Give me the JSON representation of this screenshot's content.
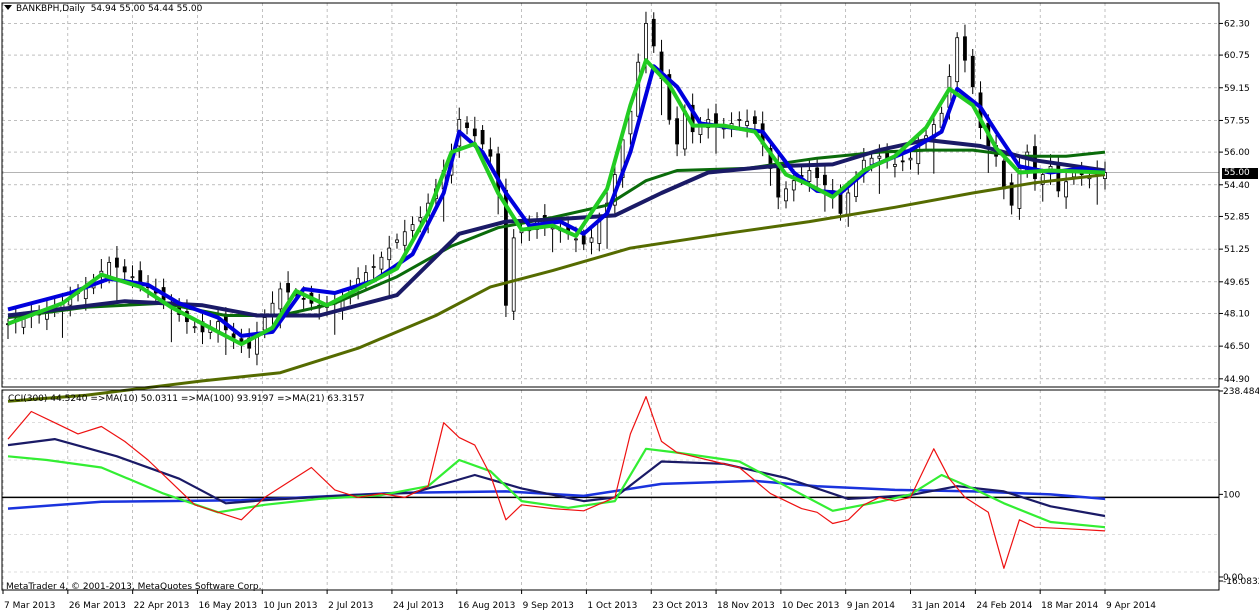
{
  "chart_data": {
    "type": "candlestick",
    "symbol_header": "BANKBPH,Daily",
    "ohlc_header": "54.94 55.00 54.44 55.00",
    "current_price": "55.00",
    "price_axis": {
      "ticks": [
        "62.30",
        "60.75",
        "59.15",
        "57.55",
        "56.00",
        "54.40",
        "52.85",
        "51.25",
        "49.65",
        "48.10",
        "46.50",
        "44.90"
      ],
      "ylim": [
        44.5,
        63.3
      ]
    },
    "date_axis": {
      "ticks": [
        "7 Mar 2013",
        "26 Mar 2013",
        "22 Apr 2013",
        "16 May 2013",
        "10 Jun 2013",
        "2 Jul 2013",
        "24 Jul 2013",
        "16 Aug 2013",
        "9 Sep 2013",
        "1 Oct 2013",
        "23 Oct 2013",
        "18 Nov 2013",
        "10 Dec 2013",
        "9 Jan 2014",
        "31 Jan 2014",
        "24 Feb 2014",
        "18 Mar 2014",
        "9 Apr 2014"
      ]
    },
    "price_path": [
      [
        0,
        47.6
      ],
      [
        5,
        48.2
      ],
      [
        10,
        49.3
      ],
      [
        13,
        50.6
      ],
      [
        16,
        49.9
      ],
      [
        19,
        49.1
      ],
      [
        21,
        48.4
      ],
      [
        23,
        47.7
      ],
      [
        25,
        47.2
      ],
      [
        27,
        47.7
      ],
      [
        29,
        46.9
      ],
      [
        31,
        46.4
      ],
      [
        33,
        47.9
      ],
      [
        35,
        49.3
      ],
      [
        37,
        49.0
      ],
      [
        39,
        48.6
      ],
      [
        41,
        48.4
      ],
      [
        43,
        48.8
      ],
      [
        45,
        49.8
      ],
      [
        47,
        50.4
      ],
      [
        49,
        51.3
      ],
      [
        51,
        52.1
      ],
      [
        53,
        52.8
      ],
      [
        55,
        54.2
      ],
      [
        57,
        56.0
      ],
      [
        58,
        57.6
      ],
      [
        59,
        57.2
      ],
      [
        61,
        56.4
      ],
      [
        62,
        55.8
      ],
      [
        63,
        54.0
      ],
      [
        64,
        48.5
      ],
      [
        65,
        51.8
      ],
      [
        66,
        52.2
      ],
      [
        68,
        52.6
      ],
      [
        70,
        52.3
      ],
      [
        72,
        52.0
      ],
      [
        74,
        51.5
      ],
      [
        75,
        51.8
      ],
      [
        77,
        53.5
      ],
      [
        78,
        54.9
      ],
      [
        79,
        56.6
      ],
      [
        80,
        58.0
      ],
      [
        81,
        60.4
      ],
      [
        82,
        62.3
      ],
      [
        83,
        61.2
      ],
      [
        84,
        59.6
      ],
      [
        85,
        57.6
      ],
      [
        86,
        56.4
      ],
      [
        87,
        58.0
      ],
      [
        88,
        57.0
      ],
      [
        90,
        57.6
      ],
      [
        92,
        57.2
      ],
      [
        94,
        57.6
      ],
      [
        96,
        57.4
      ],
      [
        97,
        56.4
      ],
      [
        98,
        55.2
      ],
      [
        99,
        53.8
      ],
      [
        101,
        54.6
      ],
      [
        103,
        55.1
      ],
      [
        105,
        54.4
      ],
      [
        106,
        53.8
      ],
      [
        107,
        53.0
      ],
      [
        108,
        54.0
      ],
      [
        110,
        55.6
      ],
      [
        112,
        55.8
      ],
      [
        114,
        55.4
      ],
      [
        116,
        55.7
      ],
      [
        118,
        56.8
      ],
      [
        120,
        57.9
      ],
      [
        121,
        59.7
      ],
      [
        122,
        61.6
      ],
      [
        123,
        60.5
      ],
      [
        124,
        59.2
      ],
      [
        125,
        57.2
      ],
      [
        126,
        56.3
      ],
      [
        127,
        55.8
      ],
      [
        128,
        54.2
      ],
      [
        129,
        53.4
      ],
      [
        130,
        55.2
      ],
      [
        131,
        56.0
      ],
      [
        132,
        54.7
      ],
      [
        133,
        54.9
      ],
      [
        134,
        55.3
      ],
      [
        135,
        54.1
      ],
      [
        137,
        55.0
      ],
      [
        139,
        54.8
      ],
      [
        141,
        55.0
      ]
    ],
    "moving_averages": [
      {
        "color": "#556b00",
        "role": "long",
        "points": [
          [
            0,
            43.8
          ],
          [
            10,
            44.1
          ],
          [
            25,
            44.8
          ],
          [
            35,
            45.2
          ],
          [
            45,
            46.4
          ],
          [
            55,
            48.0
          ],
          [
            62,
            49.4
          ],
          [
            70,
            50.2
          ],
          [
            80,
            51.3
          ],
          [
            92,
            52.0
          ],
          [
            103,
            52.6
          ],
          [
            114,
            53.3
          ],
          [
            124,
            54.0
          ],
          [
            132,
            54.5
          ],
          [
            141,
            54.9
          ]
        ]
      },
      {
        "color": "#0a6b0a",
        "role": "medium",
        "points": [
          [
            0,
            47.9
          ],
          [
            10,
            48.4
          ],
          [
            20,
            48.6
          ],
          [
            28,
            48.0
          ],
          [
            35,
            48.0
          ],
          [
            42,
            48.6
          ],
          [
            50,
            49.9
          ],
          [
            57,
            51.4
          ],
          [
            63,
            52.3
          ],
          [
            70,
            52.8
          ],
          [
            77,
            53.4
          ],
          [
            82,
            54.6
          ],
          [
            86,
            55.1
          ],
          [
            95,
            55.2
          ],
          [
            104,
            55.7
          ],
          [
            112,
            56.0
          ],
          [
            118,
            56.1
          ],
          [
            124,
            56.1
          ],
          [
            130,
            55.8
          ],
          [
            136,
            55.8
          ],
          [
            141,
            56.0
          ]
        ]
      },
      {
        "color": "#1a1a66",
        "role": "slow",
        "points": [
          [
            0,
            48.0
          ],
          [
            15,
            48.7
          ],
          [
            25,
            48.5
          ],
          [
            32,
            48.0
          ],
          [
            40,
            48.0
          ],
          [
            50,
            49.0
          ],
          [
            58,
            52.0
          ],
          [
            64,
            52.6
          ],
          [
            70,
            52.7
          ],
          [
            78,
            52.9
          ],
          [
            84,
            54.0
          ],
          [
            90,
            55.0
          ],
          [
            98,
            55.3
          ],
          [
            106,
            55.4
          ],
          [
            112,
            56.1
          ],
          [
            118,
            56.6
          ],
          [
            125,
            56.3
          ],
          [
            132,
            55.6
          ],
          [
            141,
            55.1
          ]
        ]
      },
      {
        "color": "#0000dd",
        "role": "fast-blue",
        "points": [
          [
            0,
            48.3
          ],
          [
            8,
            49.1
          ],
          [
            13,
            49.8
          ],
          [
            18,
            49.5
          ],
          [
            22,
            48.6
          ],
          [
            27,
            47.9
          ],
          [
            30,
            47.0
          ],
          [
            34,
            47.2
          ],
          [
            38,
            49.3
          ],
          [
            42,
            49.1
          ],
          [
            47,
            49.7
          ],
          [
            52,
            51.0
          ],
          [
            56,
            54.0
          ],
          [
            58,
            57.0
          ],
          [
            61,
            56.0
          ],
          [
            64,
            54.0
          ],
          [
            67,
            52.4
          ],
          [
            71,
            52.6
          ],
          [
            74,
            52.0
          ],
          [
            77,
            53.0
          ],
          [
            80,
            56.0
          ],
          [
            83,
            60.2
          ],
          [
            86,
            59.2
          ],
          [
            89,
            57.4
          ],
          [
            93,
            57.2
          ],
          [
            97,
            57.0
          ],
          [
            101,
            55.0
          ],
          [
            104,
            54.1
          ],
          [
            107,
            54.0
          ],
          [
            111,
            55.3
          ],
          [
            116,
            56.1
          ],
          [
            120,
            57.0
          ],
          [
            122,
            59.1
          ],
          [
            125,
            58.2
          ],
          [
            127,
            57.0
          ],
          [
            130,
            55.3
          ],
          [
            134,
            55.0
          ],
          [
            138,
            55.2
          ],
          [
            141,
            55.0
          ]
        ]
      },
      {
        "color": "#22cc22",
        "role": "fast-green",
        "points": [
          [
            0,
            47.6
          ],
          [
            7,
            48.6
          ],
          [
            12,
            50.0
          ],
          [
            17,
            49.4
          ],
          [
            21,
            48.4
          ],
          [
            26,
            47.4
          ],
          [
            30,
            46.6
          ],
          [
            34,
            47.4
          ],
          [
            37,
            49.2
          ],
          [
            41,
            48.5
          ],
          [
            45,
            49.3
          ],
          [
            50,
            50.3
          ],
          [
            54,
            53.0
          ],
          [
            57,
            56.0
          ],
          [
            60,
            56.4
          ],
          [
            63,
            54.0
          ],
          [
            66,
            52.2
          ],
          [
            70,
            52.4
          ],
          [
            73,
            51.9
          ],
          [
            77,
            54.2
          ],
          [
            80,
            58.3
          ],
          [
            82,
            60.5
          ],
          [
            85,
            59.3
          ],
          [
            88,
            57.3
          ],
          [
            92,
            57.3
          ],
          [
            96,
            57.0
          ],
          [
            100,
            54.9
          ],
          [
            103,
            54.4
          ],
          [
            106,
            53.8
          ],
          [
            110,
            55.1
          ],
          [
            114,
            55.8
          ],
          [
            118,
            57.2
          ],
          [
            121,
            59.1
          ],
          [
            124,
            58.3
          ],
          [
            127,
            56.2
          ],
          [
            130,
            55.0
          ],
          [
            134,
            55.1
          ],
          [
            141,
            55.0
          ]
        ]
      }
    ],
    "cci_indicator": {
      "label": "CCI(300) 44.5240",
      "ma_labels": [
        "=>MA(10) 50.0311",
        "=>MA(100) 93.9197",
        "=>MA(21) 63.3157"
      ],
      "axis_ticks": [
        "238.4848",
        "100",
        "0.00",
        "-16.0832"
      ],
      "ylim": [
        -16.08,
        238.48
      ],
      "reference_level": 100,
      "cci_path": [
        [
          0,
          178
        ],
        [
          3,
          215
        ],
        [
          6,
          200
        ],
        [
          9,
          185
        ],
        [
          12,
          195
        ],
        [
          15,
          175
        ],
        [
          18,
          150
        ],
        [
          21,
          120
        ],
        [
          24,
          90
        ],
        [
          27,
          80
        ],
        [
          30,
          70
        ],
        [
          33,
          100
        ],
        [
          36,
          120
        ],
        [
          39,
          140
        ],
        [
          42,
          110
        ],
        [
          45,
          100
        ],
        [
          48,
          105
        ],
        [
          51,
          100
        ],
        [
          54,
          115
        ],
        [
          56,
          200
        ],
        [
          58,
          180
        ],
        [
          60,
          170
        ],
        [
          62,
          130
        ],
        [
          64,
          70
        ],
        [
          66,
          90
        ],
        [
          70,
          85
        ],
        [
          74,
          82
        ],
        [
          78,
          100
        ],
        [
          80,
          185
        ],
        [
          82,
          235
        ],
        [
          84,
          175
        ],
        [
          86,
          160
        ],
        [
          90,
          150
        ],
        [
          94,
          140
        ],
        [
          98,
          105
        ],
        [
          102,
          85
        ],
        [
          104,
          80
        ],
        [
          106,
          65
        ],
        [
          108,
          70
        ],
        [
          110,
          90
        ],
        [
          112,
          100
        ],
        [
          114,
          95
        ],
        [
          116,
          100
        ],
        [
          119,
          165
        ],
        [
          121,
          125
        ],
        [
          123,
          100
        ],
        [
          126,
          80
        ],
        [
          128,
          5
        ],
        [
          130,
          70
        ],
        [
          132,
          60
        ],
        [
          136,
          58
        ],
        [
          141,
          55
        ]
      ],
      "ma_fast_path": [
        [
          0,
          155
        ],
        [
          5,
          150
        ],
        [
          12,
          140
        ],
        [
          20,
          105
        ],
        [
          27,
          80
        ],
        [
          33,
          90
        ],
        [
          40,
          98
        ],
        [
          48,
          103
        ],
        [
          54,
          115
        ],
        [
          58,
          150
        ],
        [
          62,
          135
        ],
        [
          66,
          95
        ],
        [
          72,
          86
        ],
        [
          78,
          95
        ],
        [
          82,
          165
        ],
        [
          86,
          160
        ],
        [
          94,
          148
        ],
        [
          100,
          115
        ],
        [
          106,
          82
        ],
        [
          112,
          94
        ],
        [
          116,
          104
        ],
        [
          120,
          130
        ],
        [
          124,
          112
        ],
        [
          128,
          92
        ],
        [
          134,
          67
        ],
        [
          141,
          60
        ]
      ],
      "ma_mid_path": [
        [
          0,
          170
        ],
        [
          6,
          178
        ],
        [
          14,
          155
        ],
        [
          22,
          125
        ],
        [
          28,
          92
        ],
        [
          34,
          97
        ],
        [
          44,
          103
        ],
        [
          52,
          106
        ],
        [
          60,
          130
        ],
        [
          66,
          112
        ],
        [
          74,
          95
        ],
        [
          78,
          100
        ],
        [
          84,
          148
        ],
        [
          92,
          145
        ],
        [
          100,
          126
        ],
        [
          108,
          98
        ],
        [
          116,
          103
        ],
        [
          122,
          115
        ],
        [
          128,
          108
        ],
        [
          134,
          88
        ],
        [
          141,
          75
        ]
      ],
      "ma_slow_path": [
        [
          0,
          85
        ],
        [
          12,
          94
        ],
        [
          30,
          96
        ],
        [
          50,
          106
        ],
        [
          64,
          108
        ],
        [
          74,
          102
        ],
        [
          84,
          118
        ],
        [
          96,
          122
        ],
        [
          104,
          115
        ],
        [
          114,
          110
        ],
        [
          124,
          108
        ],
        [
          134,
          104
        ],
        [
          141,
          98
        ]
      ]
    }
  },
  "platform": {
    "copyright": "MetaTrader 4, © 2001-2013, MetaQuotes Software Corp."
  }
}
